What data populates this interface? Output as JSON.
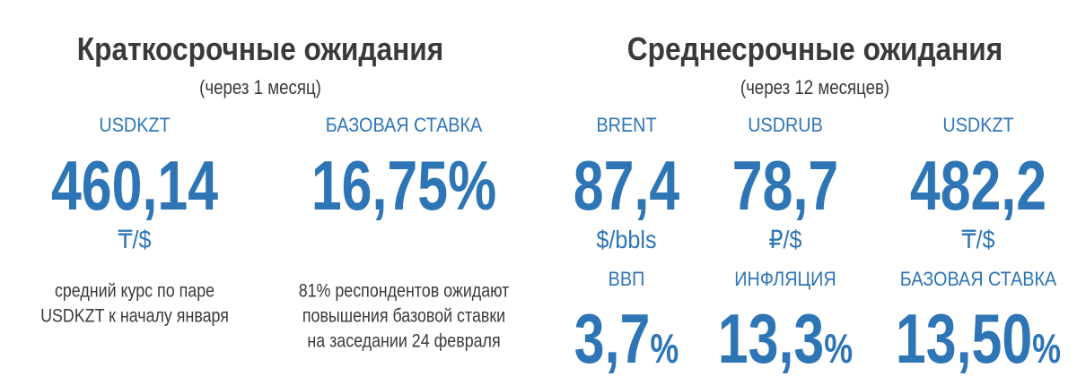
{
  "short_term": {
    "title": "Краткосрочные ожидания",
    "subtitle": "(через 1 месяц)",
    "items": [
      {
        "label": "USDKZT",
        "value": "460,14",
        "unit": "₸/$",
        "note": [
          "средний курс по паре",
          "USDKZT к началу января"
        ]
      },
      {
        "label": "БАЗОВАЯ СТАВКА",
        "value": "16,75%",
        "note": [
          "81% респондентов ожидают",
          "повышения базовой ставки",
          "на заседании 24 февраля"
        ]
      }
    ]
  },
  "medium_term": {
    "title": "Среднесрочные ожидания",
    "subtitle": "(через 12 месяцев)",
    "items": [
      {
        "label": "BRENT",
        "value": "87,4",
        "unit": "$/bbls"
      },
      {
        "label": "USDRUB",
        "value": "78,7",
        "unit": "₽/$"
      },
      {
        "label": "USDKZT",
        "value": "482,2",
        "unit": "₸/$"
      },
      {
        "label": "ВВП",
        "value": "3,7",
        "suffix": "%"
      },
      {
        "label": "ИНФЛЯЦИЯ",
        "value": "13,3",
        "suffix": "%"
      },
      {
        "label": "БАЗОВАЯ СТАВКА",
        "value": "13,50",
        "suffix": "%"
      }
    ]
  }
}
